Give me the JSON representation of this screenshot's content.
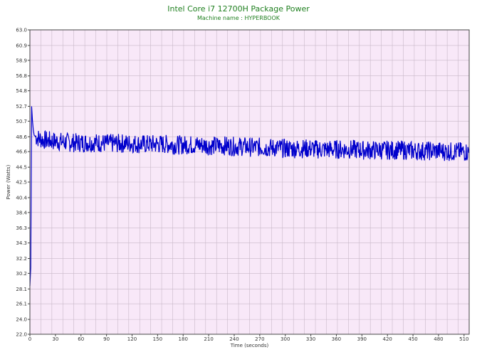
{
  "chart_data": {
    "type": "line",
    "title": "Intel Core i7 12700H Package Power",
    "subtitle": "Machine name : HYPERBOOK",
    "xlabel": "Time (seconds)",
    "ylabel": "Power (Watts)",
    "xlim": [
      0,
      516
    ],
    "ylim": [
      22.0,
      63.0
    ],
    "x_ticks": [
      0,
      30,
      60,
      90,
      120,
      150,
      180,
      210,
      240,
      270,
      300,
      330,
      360,
      390,
      420,
      450,
      480,
      510
    ],
    "y_ticks": [
      "22.0",
      "24.0",
      "26.1",
      "28.1",
      "30.2",
      "32.2",
      "34.3",
      "36.3",
      "38.4",
      "40.4",
      "42.5",
      "44.5",
      "46.6",
      "48.6",
      "50.7",
      "52.7",
      "54.8",
      "56.8",
      "58.9",
      "60.9",
      "63.0"
    ],
    "grid": true,
    "background_color": "#f8e8f8",
    "grid_color": "#c8b8c8",
    "line_color": "#0000cc",
    "title_color": "#208020",
    "series": [
      {
        "x": [
          0,
          1,
          2,
          3,
          4,
          5,
          7,
          10,
          15,
          20,
          30,
          40,
          50,
          60,
          70,
          80,
          90,
          100,
          110,
          120,
          130,
          140,
          150,
          160,
          170,
          180,
          190,
          200,
          210,
          220,
          230,
          240,
          250,
          260,
          270,
          280,
          290,
          300,
          310,
          320,
          330,
          340,
          350,
          360,
          370,
          380,
          390,
          400,
          410,
          420,
          430,
          440,
          450,
          460,
          470,
          480,
          490,
          500,
          510,
          516
        ],
        "y": [
          28.5,
          31.0,
          52.7,
          50.8,
          49.5,
          48.8,
          48.6,
          48.4,
          48.2,
          48.1,
          48.0,
          47.9,
          47.8,
          47.8,
          47.8,
          47.8,
          47.7,
          47.7,
          47.7,
          47.7,
          47.6,
          47.6,
          47.6,
          47.6,
          47.5,
          47.5,
          47.5,
          47.5,
          47.4,
          47.4,
          47.4,
          47.3,
          47.3,
          47.2,
          47.2,
          47.1,
          47.1,
          47.0,
          47.0,
          47.0,
          47.0,
          46.9,
          46.9,
          46.9,
          46.9,
          46.9,
          46.8,
          46.8,
          46.8,
          46.8,
          46.8,
          46.8,
          46.7,
          46.7,
          46.7,
          46.7,
          46.6,
          46.6,
          46.6,
          46.5
        ]
      }
    ]
  }
}
